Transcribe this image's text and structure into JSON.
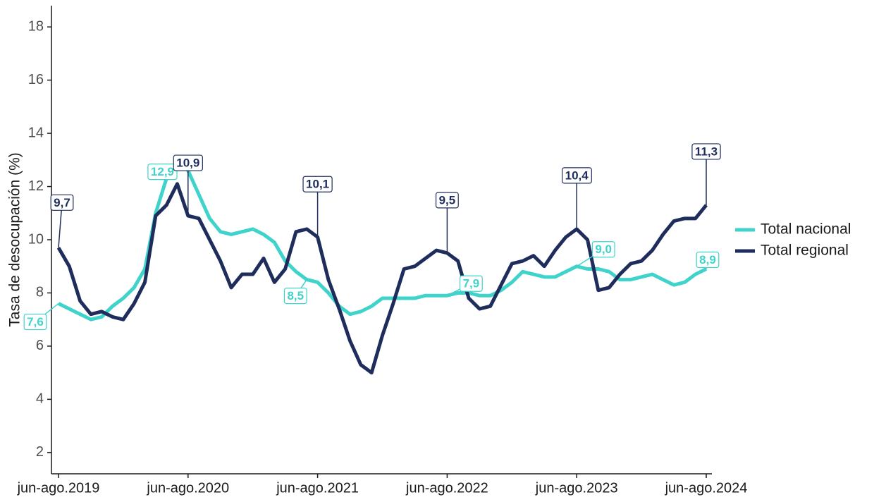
{
  "chart_data": {
    "type": "line",
    "y_label": "Tasa de desocupación (%)",
    "categories": [
      "jun-ago.2019",
      null,
      null,
      null,
      null,
      null,
      null,
      null,
      null,
      null,
      null,
      null,
      "jun-ago.2020",
      null,
      null,
      null,
      null,
      null,
      null,
      null,
      null,
      null,
      null,
      null,
      "jun-ago.2021",
      null,
      null,
      null,
      null,
      null,
      null,
      null,
      null,
      null,
      null,
      null,
      "jun-ago.2022",
      null,
      null,
      null,
      null,
      null,
      null,
      null,
      null,
      null,
      null,
      null,
      "jun-ago.2023",
      null,
      null,
      null,
      null,
      null,
      null,
      null,
      null,
      null,
      null,
      null,
      "jun-ago.2024"
    ],
    "series": [
      {
        "name": "Total nacional",
        "color": "#40d3cc",
        "values": [
          7.6,
          7.4,
          7.2,
          7.0,
          7.1,
          7.5,
          7.8,
          8.2,
          8.9,
          11.0,
          12.3,
          12.9,
          12.6,
          11.7,
          10.8,
          10.3,
          10.2,
          10.3,
          10.4,
          10.2,
          9.9,
          9.2,
          8.8,
          8.5,
          8.4,
          8.0,
          7.5,
          7.2,
          7.3,
          7.5,
          7.8,
          7.8,
          7.8,
          7.8,
          7.9,
          7.9,
          7.9,
          8.0,
          8.0,
          7.9,
          7.9,
          8.1,
          8.4,
          8.8,
          8.7,
          8.6,
          8.6,
          8.8,
          9.0,
          8.9,
          8.9,
          8.8,
          8.5,
          8.5,
          8.6,
          8.7,
          8.5,
          8.3,
          8.4,
          8.7,
          8.9
        ],
        "value_labels": [
          "7,6",
          null,
          null,
          null,
          null,
          null,
          null,
          null,
          null,
          null,
          null,
          "12,9",
          null,
          null,
          null,
          null,
          null,
          null,
          null,
          null,
          null,
          null,
          null,
          "8,5",
          null,
          null,
          null,
          null,
          null,
          null,
          null,
          null,
          null,
          null,
          null,
          null,
          "7,9",
          null,
          null,
          null,
          null,
          null,
          null,
          null,
          null,
          null,
          null,
          null,
          "9,0",
          null,
          null,
          null,
          null,
          null,
          null,
          null,
          null,
          null,
          null,
          null,
          "8,9"
        ]
      },
      {
        "name": "Total regional",
        "color": "#1f2d5c",
        "values": [
          9.7,
          9.0,
          7.7,
          7.2,
          7.3,
          7.1,
          7.0,
          7.6,
          8.4,
          10.9,
          11.3,
          12.1,
          10.9,
          10.8,
          10.0,
          9.2,
          8.2,
          8.7,
          8.7,
          9.3,
          8.4,
          8.9,
          10.3,
          10.4,
          10.1,
          8.5,
          7.4,
          6.2,
          5.3,
          5.0,
          6.4,
          7.6,
          8.9,
          9.0,
          9.3,
          9.6,
          9.5,
          9.2,
          7.8,
          7.4,
          7.5,
          8.3,
          9.1,
          9.2,
          9.4,
          9.0,
          9.6,
          10.1,
          10.4,
          10.0,
          8.1,
          8.2,
          8.7,
          9.1,
          9.2,
          9.6,
          10.2,
          10.7,
          10.8,
          10.8,
          11.3
        ],
        "value_labels": [
          "9,7",
          null,
          null,
          null,
          null,
          null,
          null,
          null,
          null,
          null,
          null,
          null,
          "10,9",
          null,
          null,
          null,
          null,
          null,
          null,
          null,
          null,
          null,
          null,
          null,
          "10,1",
          null,
          null,
          null,
          null,
          null,
          null,
          null,
          null,
          null,
          null,
          null,
          "9,5",
          null,
          null,
          null,
          null,
          null,
          null,
          null,
          null,
          null,
          null,
          null,
          "10,4",
          null,
          null,
          null,
          null,
          null,
          null,
          null,
          null,
          null,
          null,
          null,
          "11,3"
        ]
      }
    ],
    "ylim": [
      1.2,
      18.8
    ],
    "yticks": [
      2,
      4,
      6,
      8,
      10,
      12,
      14,
      16,
      18
    ],
    "grid": false,
    "legend": "right"
  }
}
